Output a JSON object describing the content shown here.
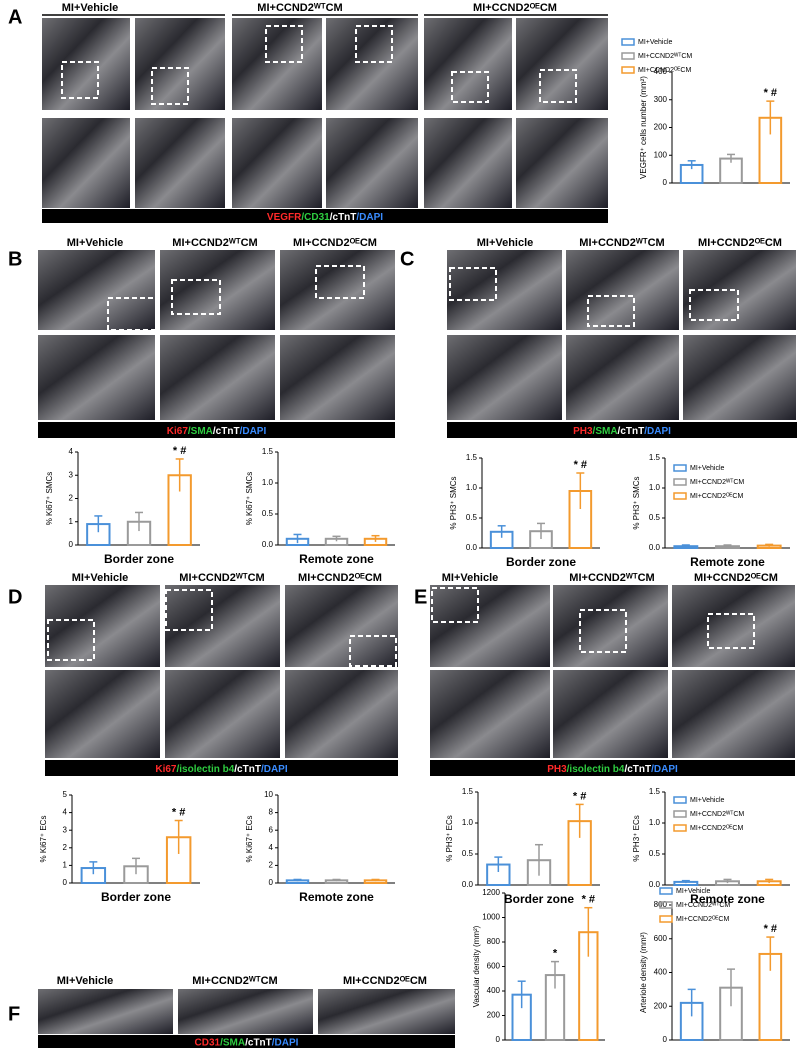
{
  "chart_data": [
    {
      "type": "bar",
      "ylabel": "VEGFR⁺ cells number (mm²)",
      "categories": [
        "MI+Vehicle",
        "MI+CCND2ᵂᵀCM",
        "MI+CCND2ᴼᴱCM"
      ],
      "legend": true,
      "values": [
        65,
        88,
        235
      ],
      "errors": [
        15,
        15,
        60
      ],
      "colors": [
        "#4a90d9",
        "#9a9a9a",
        "#f39a2e"
      ],
      "annotations": [
        null,
        null,
        "* #"
      ],
      "ylim": [
        0,
        400
      ],
      "yticks": [
        0,
        100,
        200,
        300,
        400
      ]
    },
    {
      "type": "bar",
      "ylabel": "% Ki67⁺ SMCs",
      "xlabel": "Border zone",
      "values": [
        0.9,
        1.0,
        3.0
      ],
      "errors": [
        0.35,
        0.4,
        0.7
      ],
      "colors": [
        "#4a90d9",
        "#9a9a9a",
        "#f39a2e"
      ],
      "annotations": [
        null,
        null,
        "* #"
      ],
      "ylim": [
        0,
        4
      ],
      "yticks": [
        0,
        1,
        2,
        3,
        4
      ]
    },
    {
      "type": "bar",
      "ylabel": "% Ki67⁺ SMCs",
      "xlabel": "Remote zone",
      "values": [
        0.1,
        0.1,
        0.1
      ],
      "errors": [
        0.07,
        0.04,
        0.05
      ],
      "colors": [
        "#4a90d9",
        "#9a9a9a",
        "#f39a2e"
      ],
      "ylim": [
        0,
        1.5
      ],
      "yticks": [
        {
          "value": 0,
          "label": "0.0"
        },
        {
          "value": 0.5,
          "label": "0.5"
        },
        {
          "value": 1,
          "label": "1.0"
        },
        {
          "value": 1.5,
          "label": "1.5"
        }
      ]
    },
    {
      "type": "bar",
      "ylabel": "% PH3⁺ SMCs",
      "xlabel": "Border zone",
      "values": [
        0.27,
        0.28,
        0.95
      ],
      "errors": [
        0.1,
        0.13,
        0.3
      ],
      "colors": [
        "#4a90d9",
        "#9a9a9a",
        "#f39a2e"
      ],
      "annotations": [
        null,
        null,
        "* #"
      ],
      "ylim": [
        0,
        1.5
      ],
      "yticks": [
        {
          "value": 0,
          "label": "0.0"
        },
        {
          "value": 0.5,
          "label": "0.5"
        },
        {
          "value": 1,
          "label": "1.0"
        },
        {
          "value": 1.5,
          "label": "1.5"
        }
      ]
    },
    {
      "type": "bar",
      "ylabel": "% PH3⁺ SMCs",
      "xlabel": "Remote zone",
      "categories": [
        "MI+Vehicle",
        "MI+CCND2ᵂᵀCM",
        "MI+CCND2ᴼᴱCM"
      ],
      "legend": true,
      "values": [
        0.03,
        0.03,
        0.04
      ],
      "errors": [
        0.02,
        0.02,
        0.02
      ],
      "colors": [
        "#4a90d9",
        "#9a9a9a",
        "#f39a2e"
      ],
      "ylim": [
        0,
        1.5
      ],
      "yticks": [
        {
          "value": 0,
          "label": "0.0"
        },
        {
          "value": 0.5,
          "label": "0.5"
        },
        {
          "value": 1,
          "label": "1.0"
        },
        {
          "value": 1.5,
          "label": "1.5"
        }
      ]
    },
    {
      "type": "bar",
      "ylabel": "% Ki67⁺ ECs",
      "xlabel": "Border zone",
      "values": [
        0.85,
        0.95,
        2.6
      ],
      "errors": [
        0.35,
        0.45,
        0.95
      ],
      "colors": [
        "#4a90d9",
        "#9a9a9a",
        "#f39a2e"
      ],
      "annotations": [
        null,
        null,
        "* #"
      ],
      "ylim": [
        0,
        5
      ],
      "yticks": [
        0,
        1,
        2,
        3,
        4,
        5
      ]
    },
    {
      "type": "bar",
      "ylabel": "% Ki67⁺ ECs",
      "xlabel": "Remote zone",
      "values": [
        0.3,
        0.3,
        0.3
      ],
      "errors": [
        0.1,
        0.1,
        0.1
      ],
      "colors": [
        "#4a90d9",
        "#9a9a9a",
        "#f39a2e"
      ],
      "ylim": [
        0,
        10
      ],
      "yticks": [
        0,
        2,
        4,
        6,
        8,
        10
      ]
    },
    {
      "type": "bar",
      "ylabel": "% PH3⁺ ECs",
      "xlabel": "Border zone",
      "values": [
        0.33,
        0.4,
        1.03
      ],
      "errors": [
        0.12,
        0.25,
        0.27
      ],
      "colors": [
        "#4a90d9",
        "#9a9a9a",
        "#f39a2e"
      ],
      "annotations": [
        null,
        null,
        "* #"
      ],
      "ylim": [
        0,
        1.5
      ],
      "yticks": [
        {
          "value": 0,
          "label": "0.0"
        },
        {
          "value": 0.5,
          "label": "0.5"
        },
        {
          "value": 1,
          "label": "1.0"
        },
        {
          "value": 1.5,
          "label": "1.5"
        }
      ]
    },
    {
      "type": "bar",
      "ylabel": "% PH3⁺ ECs",
      "xlabel": "Remote zone",
      "categories": [
        "MI+Vehicle",
        "MI+CCND2ᵂᵀCM",
        "MI+CCND2ᴼᴱCM"
      ],
      "legend": true,
      "values": [
        0.05,
        0.06,
        0.06
      ],
      "errors": [
        0.02,
        0.03,
        0.03
      ],
      "colors": [
        "#4a90d9",
        "#9a9a9a",
        "#f39a2e"
      ],
      "ylim": [
        0,
        1.5
      ],
      "yticks": [
        {
          "value": 0,
          "label": "0.0"
        },
        {
          "value": 0.5,
          "label": "0.5"
        },
        {
          "value": 1,
          "label": "1.0"
        },
        {
          "value": 1.5,
          "label": "1.5"
        }
      ]
    },
    {
      "type": "bar",
      "ylabel": "Vascular density (mm²)",
      "values": [
        370,
        530,
        880
      ],
      "errors": [
        110,
        110,
        200
      ],
      "colors": [
        "#4a90d9",
        "#9a9a9a",
        "#f39a2e"
      ],
      "annotations": [
        null,
        "*",
        "* #"
      ],
      "ylim": [
        0,
        1200
      ],
      "yticks": [
        0,
        200,
        400,
        600,
        800,
        1000,
        1200
      ]
    },
    {
      "type": "bar",
      "ylabel": "Arteriole density (mm²)",
      "categories": [
        "MI+Vehicle",
        "MI+CCND2ᵂᵀCM",
        "MI+CCND2ᴼᴱCM"
      ],
      "legend": true,
      "values": [
        220,
        310,
        510
      ],
      "errors": [
        80,
        110,
        100
      ],
      "colors": [
        "#4a90d9",
        "#9a9a9a",
        "#f39a2e"
      ],
      "annotations": [
        null,
        null,
        "* #"
      ],
      "ylim": [
        0,
        800
      ],
      "yticks": [
        0,
        200,
        400,
        600,
        800
      ]
    }
  ],
  "figure": {
    "panels": [
      {
        "letter": "A",
        "headers": [
          "MI+Vehicle",
          "MI+CCND2ᵂᵀCM",
          "MI+CCND2ᴼᴱCM"
        ],
        "stain": [
          {
            "text": "VEGFR",
            "color": "#ff2a2a"
          },
          {
            "text": "/CD31",
            "color": "#2ecc40"
          },
          {
            "text": "/cTnT",
            "color": "#ffffff"
          },
          {
            "text": "/DAPI",
            "color": "#3a8cff"
          }
        ]
      },
      {
        "letter": "B",
        "headers": [
          "MI+Vehicle",
          "MI+CCND2ᵂᵀCM",
          "MI+CCND2ᴼᴱCM"
        ],
        "stain": [
          {
            "text": "Ki67",
            "color": "#ff2a2a"
          },
          {
            "text": "/SMA",
            "color": "#2ecc40"
          },
          {
            "text": "/cTnT",
            "color": "#ffffff"
          },
          {
            "text": "/DAPI",
            "color": "#3a8cff"
          }
        ]
      },
      {
        "letter": "C",
        "headers": [
          "MI+Vehicle",
          "MI+CCND2ᵂᵀCM",
          "MI+CCND2ᴼᴱCM"
        ],
        "stain": [
          {
            "text": "PH3",
            "color": "#ff2a2a"
          },
          {
            "text": "/SMA",
            "color": "#2ecc40"
          },
          {
            "text": "/cTnT",
            "color": "#ffffff"
          },
          {
            "text": "/DAPI",
            "color": "#3a8cff"
          }
        ]
      },
      {
        "letter": "D",
        "headers": [
          "MI+Vehicle",
          "MI+CCND2ᵂᵀCM",
          "MI+CCND2ᴼᴱCM"
        ],
        "stain": [
          {
            "text": "Ki67",
            "color": "#ff2a2a"
          },
          {
            "text": "/isolectin b4",
            "color": "#2ecc40"
          },
          {
            "text": "/cTnT",
            "color": "#ffffff"
          },
          {
            "text": "/DAPI",
            "color": "#3a8cff"
          }
        ]
      },
      {
        "letter": "E",
        "headers": [
          "MI+Vehicle",
          "MI+CCND2ᵂᵀCM",
          "MI+CCND2ᴼᴱCM"
        ],
        "stain": [
          {
            "text": "PH3",
            "color": "#ff2a2a"
          },
          {
            "text": "/isolectin b4",
            "color": "#2ecc40"
          },
          {
            "text": "/cTnT",
            "color": "#ffffff"
          },
          {
            "text": "/DAPI",
            "color": "#3a8cff"
          }
        ]
      },
      {
        "letter": "F",
        "headers": [
          "MI+Vehicle",
          "MI+CCND2ᵂᵀCM",
          "MI+CCND2ᴼᴱCM"
        ],
        "stain": [
          {
            "text": "CD31",
            "color": "#ff2a2a"
          },
          {
            "text": "/SMA",
            "color": "#2ecc40"
          },
          {
            "text": "/cTnT",
            "color": "#ffffff"
          },
          {
            "text": "/DAPI",
            "color": "#3a8cff"
          }
        ]
      }
    ]
  }
}
